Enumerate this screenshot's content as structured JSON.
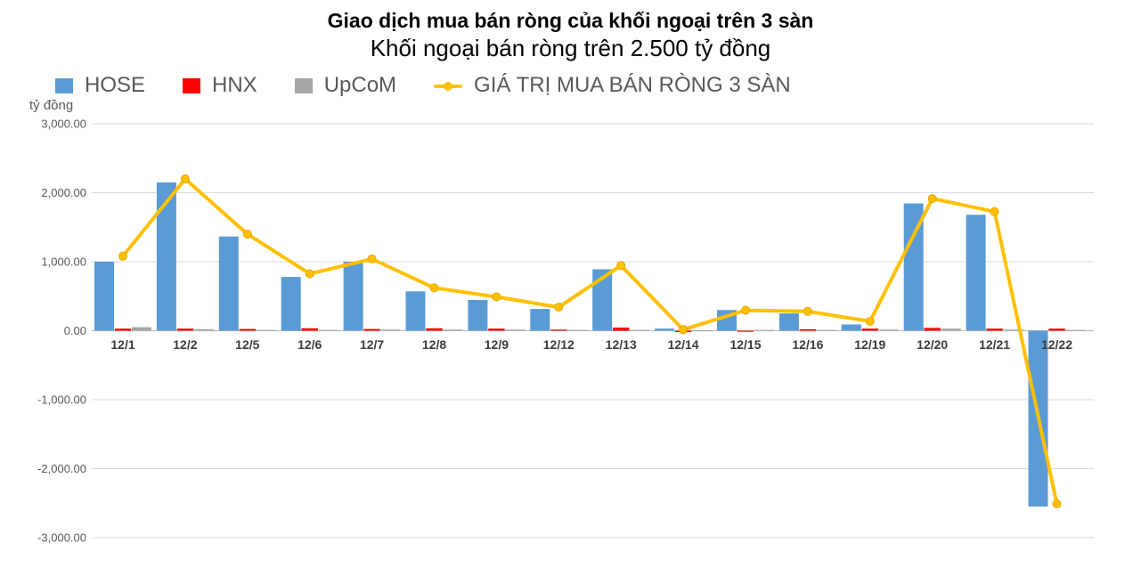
{
  "header": {
    "title": "Giao dịch mua bán ròng của khối ngoại trên 3 sàn",
    "subtitle": "Khối ngoại bán ròng trên 2.500 tỷ đồng"
  },
  "legend": {
    "items": [
      {
        "label": "HOSE",
        "color": "#5B9BD5",
        "marker": "square"
      },
      {
        "label": "HNX",
        "color": "#FF0000",
        "marker": "square"
      },
      {
        "label": "UpCoM",
        "color": "#A6A6A6",
        "marker": "square"
      },
      {
        "label": "GIÁ TRỊ MUA BÁN RÒNG 3 SÀN",
        "color": "#FFC000",
        "marker": "line"
      }
    ]
  },
  "axis": {
    "unit_label": "tỷ đồng",
    "y_tick_labels": [
      "3,000.00",
      "2,000.00",
      "1,000.00",
      "0.00",
      "-1,000.00",
      "-2,000.00",
      "-3,000.00"
    ]
  },
  "chart_data": {
    "type": "combo",
    "title": "Giao dịch mua bán ròng của khối ngoại trên 3 sàn",
    "subtitle": "Khối ngoại bán ròng trên 2.500 tỷ đồng",
    "ylabel": "tỷ đồng",
    "ylim": [
      -3000,
      3000
    ],
    "y_tick_step": 1000,
    "grid": true,
    "legend_position": "top-left",
    "categories": [
      "12/1",
      "12/2",
      "12/5",
      "12/6",
      "12/7",
      "12/8",
      "12/9",
      "12/12",
      "12/13",
      "12/14",
      "12/15",
      "12/16",
      "12/19",
      "12/20",
      "12/21",
      "12/22"
    ],
    "series": [
      {
        "name": "HOSE",
        "type": "bar",
        "color": "#5B9BD5",
        "values": [
          1000,
          2150,
          1365,
          780,
          1000,
          570,
          445,
          315,
          890,
          30,
          300,
          250,
          90,
          1845,
          1680,
          -2550
        ]
      },
      {
        "name": "HNX",
        "type": "bar",
        "color": "#FF0000",
        "values": [
          30,
          30,
          25,
          35,
          25,
          35,
          30,
          15,
          45,
          -20,
          -15,
          20,
          30,
          40,
          30,
          30
        ]
      },
      {
        "name": "UpCoM",
        "type": "bar",
        "color": "#A6A6A6",
        "values": [
          50,
          20,
          10,
          10,
          15,
          15,
          15,
          10,
          10,
          5,
          10,
          10,
          15,
          30,
          15,
          10
        ]
      },
      {
        "name": "GIÁ TRỊ MUA BÁN RÒNG 3 SÀN",
        "type": "line",
        "color": "#FFC000",
        "values": [
          1080,
          2200,
          1400,
          825,
          1040,
          620,
          490,
          340,
          945,
          15,
          295,
          280,
          135,
          1915,
          1725,
          -2510
        ]
      }
    ]
  },
  "style": {
    "background": "#FFFFFF",
    "gridline_color": "#D9D9D9",
    "axis_line_color": "#BFBFBF",
    "tick_label_color": "#595959",
    "x_label_color": "#3B3B3B",
    "line_marker_stroke": "#E6A400"
  }
}
